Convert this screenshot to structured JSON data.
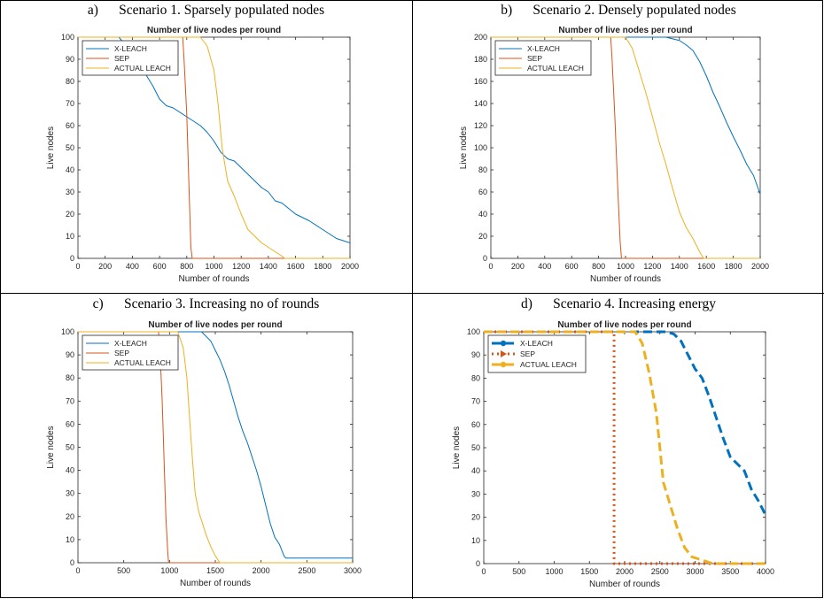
{
  "figure": {
    "panels": [
      {
        "letter": "a)",
        "caption": "Scenario 1. Sparsely populated nodes"
      },
      {
        "letter": "b)",
        "caption": "Scenario 2. Densely populated nodes"
      },
      {
        "letter": "c)",
        "caption": "Scenario 3. Increasing no of rounds"
      },
      {
        "letter": "d)",
        "caption": "Scenario 4. Increasing energy"
      }
    ]
  },
  "chart_data": [
    {
      "type": "line",
      "title": "Number of live nodes per round",
      "xlabel": "Number of rounds",
      "ylabel": "Live nodes",
      "xlim": [
        0,
        2000
      ],
      "ylim": [
        0,
        100
      ],
      "xticks": [
        0,
        200,
        400,
        600,
        800,
        1000,
        1200,
        1400,
        1600,
        1800,
        2000
      ],
      "yticks": [
        0,
        10,
        20,
        30,
        40,
        50,
        60,
        70,
        80,
        90,
        100
      ],
      "legend": "top-left",
      "style": "thin",
      "series": [
        {
          "name": "X-LEACH",
          "color": "#0072BD",
          "x": [
            0,
            300,
            400,
            450,
            500,
            550,
            600,
            650,
            700,
            800,
            850,
            900,
            950,
            1000,
            1050,
            1100,
            1150,
            1200,
            1250,
            1300,
            1350,
            1400,
            1450,
            1500,
            1600,
            1700,
            1800,
            1850,
            1900,
            1950,
            2000
          ],
          "y": [
            100,
            100,
            93,
            89,
            83,
            78,
            72,
            69,
            68,
            64,
            62,
            60,
            57,
            53,
            48,
            45,
            44,
            41,
            38,
            35,
            32,
            30,
            26,
            25,
            20,
            17,
            13,
            11,
            9,
            8,
            7
          ]
        },
        {
          "name": "SEP",
          "color": "#D95319",
          "x": [
            0,
            770,
            780,
            800,
            815,
            830,
            840,
            2000
          ],
          "y": [
            100,
            100,
            90,
            65,
            35,
            5,
            0,
            0
          ]
        },
        {
          "name": "ACTUAL LEACH",
          "color": "#EDB120",
          "x": [
            0,
            800,
            900,
            950,
            1000,
            1030,
            1060,
            1100,
            1150,
            1200,
            1250,
            1300,
            1350,
            1400,
            1450,
            1500,
            1520,
            2000
          ],
          "y": [
            100,
            100,
            100,
            96,
            85,
            70,
            50,
            35,
            28,
            20,
            13,
            10,
            7,
            5,
            3,
            1,
            0,
            0
          ]
        }
      ]
    },
    {
      "type": "line",
      "title": "Number of live nodes per round",
      "xlabel": "Number of rounds",
      "ylabel": "Live nodes",
      "xlim": [
        0,
        2000
      ],
      "ylim": [
        0,
        200
      ],
      "xticks": [
        0,
        200,
        400,
        600,
        800,
        1000,
        1200,
        1400,
        1600,
        1800,
        2000
      ],
      "yticks": [
        0,
        20,
        40,
        60,
        80,
        100,
        120,
        140,
        160,
        180,
        200
      ],
      "legend": "top-left",
      "style": "thin",
      "series": [
        {
          "name": "X-LEACH",
          "color": "#0072BD",
          "x": [
            0,
            1300,
            1400,
            1450,
            1500,
            1550,
            1600,
            1650,
            1700,
            1750,
            1800,
            1850,
            1900,
            1950,
            2000
          ],
          "y": [
            200,
            200,
            197,
            193,
            188,
            178,
            165,
            150,
            137,
            123,
            110,
            98,
            85,
            75,
            58
          ]
        },
        {
          "name": "SEP",
          "color": "#D95319",
          "x": [
            0,
            890,
            900,
            920,
            940,
            960,
            970,
            2000
          ],
          "y": [
            200,
            200,
            180,
            130,
            70,
            15,
            0,
            0
          ]
        },
        {
          "name": "ACTUAL LEACH",
          "color": "#EDB120",
          "x": [
            0,
            1000,
            1050,
            1100,
            1150,
            1200,
            1250,
            1300,
            1350,
            1400,
            1450,
            1500,
            1550,
            1580,
            2000
          ],
          "y": [
            200,
            200,
            190,
            170,
            150,
            128,
            105,
            85,
            63,
            42,
            28,
            18,
            6,
            0,
            0
          ]
        }
      ]
    },
    {
      "type": "line",
      "title": "Number of live nodes per round",
      "xlabel": "Number of rounds",
      "ylabel": "Live nodes",
      "xlim": [
        0,
        3000
      ],
      "ylim": [
        0,
        100
      ],
      "xticks": [
        0,
        500,
        1000,
        1500,
        2000,
        2500,
        3000
      ],
      "yticks": [
        0,
        10,
        20,
        30,
        40,
        50,
        60,
        70,
        80,
        90,
        100
      ],
      "legend": "top-left",
      "style": "thin",
      "series": [
        {
          "name": "X-LEACH",
          "color": "#0072BD",
          "x": [
            0,
            1350,
            1450,
            1500,
            1550,
            1600,
            1650,
            1700,
            1750,
            1800,
            1850,
            1900,
            1950,
            2000,
            2050,
            2100,
            2150,
            2200,
            2250,
            2270,
            3000
          ],
          "y": [
            100,
            100,
            96,
            92,
            88,
            83,
            77,
            70,
            63,
            57,
            52,
            46,
            40,
            33,
            25,
            17,
            11,
            8,
            3,
            2,
            2
          ]
        },
        {
          "name": "SEP",
          "color": "#D95319",
          "x": [
            0,
            880,
            900,
            920,
            940,
            960,
            980,
            990,
            3000
          ],
          "y": [
            100,
            100,
            88,
            70,
            45,
            20,
            5,
            0,
            0
          ]
        },
        {
          "name": "ACTUAL LEACH",
          "color": "#EDB120",
          "x": [
            0,
            1090,
            1150,
            1190,
            1220,
            1250,
            1280,
            1320,
            1400,
            1450,
            1500,
            1550,
            3000
          ],
          "y": [
            100,
            100,
            93,
            80,
            62,
            45,
            30,
            22,
            12,
            7,
            3,
            0,
            0
          ]
        }
      ]
    },
    {
      "type": "line",
      "title": "Number of live nodes per round",
      "xlabel": "Number of rounds",
      "ylabel": "Live nodes",
      "xlim": [
        0,
        4000
      ],
      "ylim": [
        0,
        100
      ],
      "xticks": [
        0,
        500,
        1000,
        1500,
        2000,
        2500,
        3000,
        3500,
        4000
      ],
      "yticks": [
        0,
        10,
        20,
        30,
        40,
        50,
        60,
        70,
        80,
        90,
        100
      ],
      "legend": "top-left",
      "style": "thick",
      "series": [
        {
          "name": "X-LEACH",
          "color": "#0072BD",
          "dash": "10,5",
          "marker": "circle",
          "x": [
            0,
            2600,
            2700,
            2800,
            2900,
            3000,
            3100,
            3200,
            3300,
            3400,
            3500,
            3600,
            3700,
            3800,
            3900,
            4000
          ],
          "y": [
            100,
            100,
            99,
            96,
            90,
            84,
            80,
            72,
            63,
            54,
            46,
            43,
            40,
            32,
            27,
            21
          ]
        },
        {
          "name": "SEP",
          "color": "#D95319",
          "dash": "2,4",
          "marker": "triangle",
          "x": [
            0,
            1850,
            1850,
            4000
          ],
          "y": [
            100,
            100,
            0,
            0
          ]
        },
        {
          "name": "ACTUAL LEACH",
          "color": "#EDB120",
          "dash": "10,5",
          "marker": "circle",
          "x": [
            0,
            2150,
            2250,
            2350,
            2450,
            2500,
            2550,
            2650,
            2750,
            2850,
            2950,
            3050,
            3250,
            4000
          ],
          "y": [
            100,
            100,
            95,
            82,
            65,
            50,
            35,
            25,
            15,
            7,
            3,
            2,
            0,
            0
          ]
        }
      ]
    }
  ]
}
